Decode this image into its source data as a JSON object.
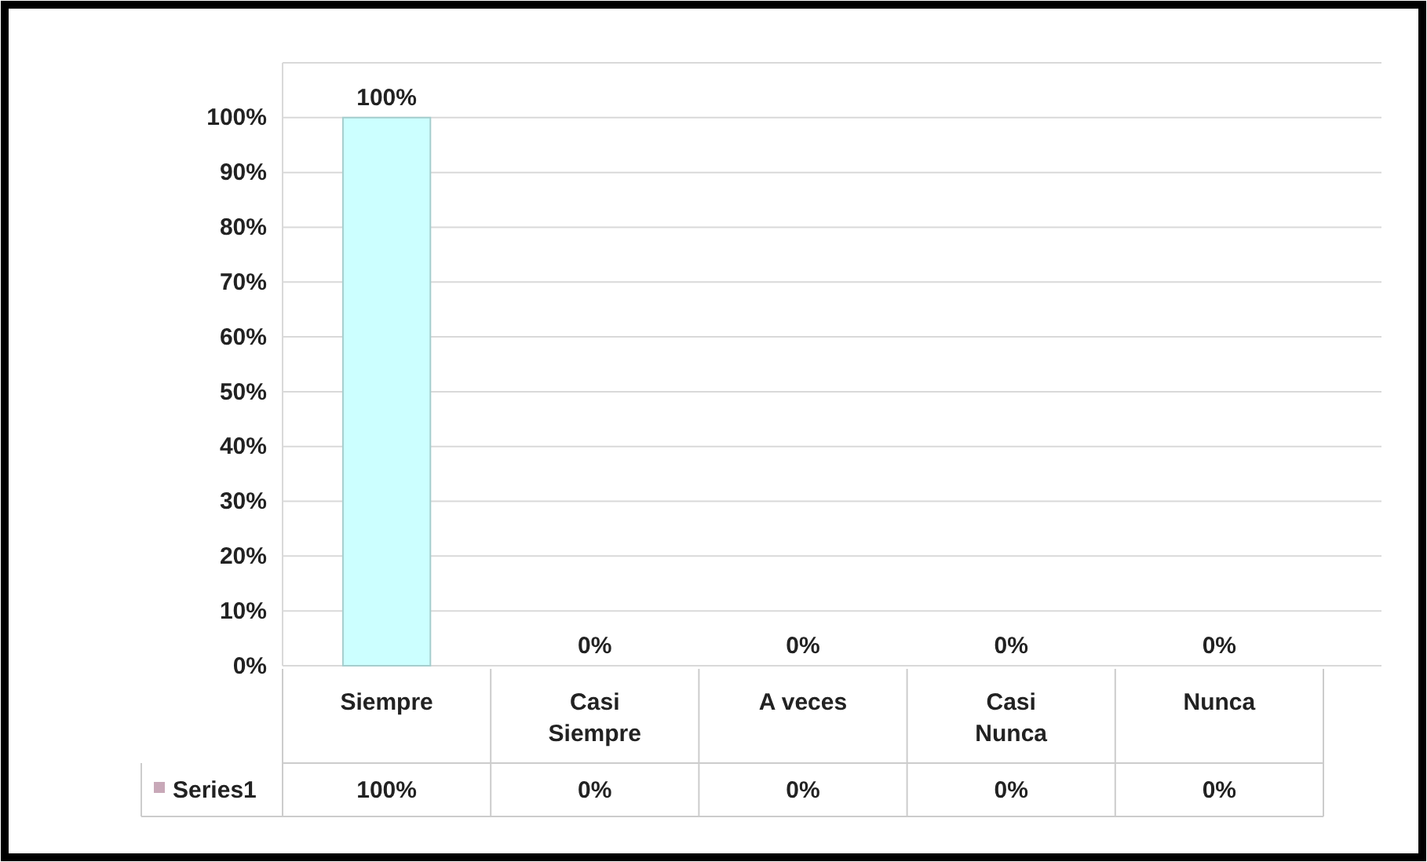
{
  "chart_data": {
    "type": "bar",
    "categories": [
      "Siempre",
      "Casi Siempre",
      "A veces",
      "Casi Nunca",
      "Nunca"
    ],
    "series": [
      {
        "name": "Series1",
        "color": "#c8a8b8",
        "values": [
          100,
          0,
          0,
          0,
          0
        ],
        "colors": [
          "#ccffff",
          "#c9a845",
          "#77a33a",
          "#9a4fd0",
          "#c00000"
        ],
        "value_labels": [
          "100%",
          "0%",
          "0%",
          "0%",
          "0%"
        ]
      }
    ],
    "ylim": [
      0,
      110
    ],
    "yticks": [
      {
        "value": 0,
        "label": "0%"
      },
      {
        "value": 10,
        "label": "10%"
      },
      {
        "value": 20,
        "label": "20%"
      },
      {
        "value": 30,
        "label": "30%"
      },
      {
        "value": 40,
        "label": "40%"
      },
      {
        "value": 50,
        "label": "50%"
      },
      {
        "value": 60,
        "label": "60%"
      },
      {
        "value": 70,
        "label": "70%"
      },
      {
        "value": 80,
        "label": "80%"
      },
      {
        "value": 90,
        "label": "90%"
      },
      {
        "value": 100,
        "label": "100%"
      }
    ],
    "grid": "y",
    "legend": "bottom left"
  }
}
